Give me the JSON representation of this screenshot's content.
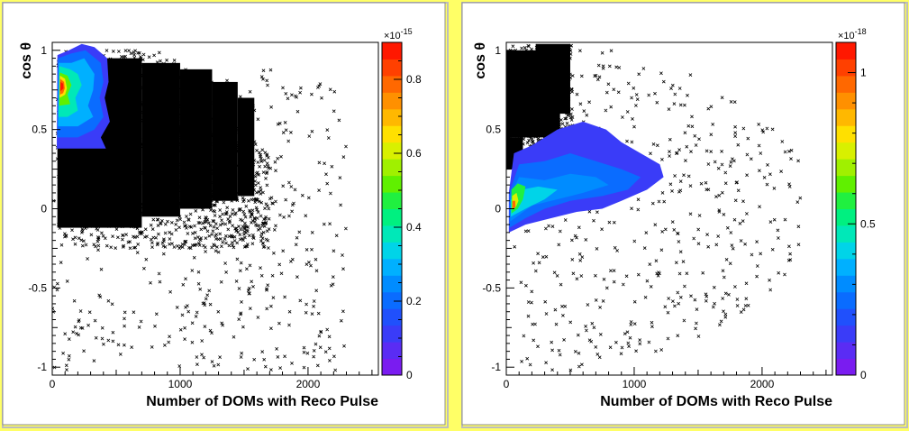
{
  "chart_data": [
    {
      "type": "scatter",
      "variant": "scatter-with-contour-overlay",
      "title": "",
      "xlabel": "Number of DOMs with Reco Pulse",
      "ylabel": "cos θ",
      "xlim": [
        0,
        2550
      ],
      "ylim": [
        -1.05,
        1.05
      ],
      "x_ticks": [
        0,
        1000,
        2000
      ],
      "y_ticks": [
        -1,
        -0.5,
        0,
        0.5,
        1
      ],
      "x_tick_labels": [
        "0",
        "1000",
        "2000"
      ],
      "y_tick_labels": [
        "-1",
        "-0.5",
        "0",
        "0.5",
        "1"
      ],
      "grid": false,
      "legend": "none",
      "colorbar": {
        "multiplier_label": "×10",
        "exponent": "-15",
        "range": [
          0,
          0.9
        ],
        "ticks": [
          0,
          0.2,
          0.4,
          0.6,
          0.8
        ],
        "tick_labels": [
          "0",
          "0.2",
          "0.4",
          "0.6",
          "0.8"
        ]
      },
      "scatter_density": {
        "dense_core": {
          "x": [
            40,
            1550
          ],
          "y": [
            -0.1,
            0.95
          ]
        },
        "sparse_tail": {
          "x": [
            0,
            2400
          ],
          "y": [
            -1.02,
            0.9
          ]
        }
      },
      "contour": {
        "x_range": [
          30,
          460
        ],
        "y_range": [
          0.37,
          1.03
        ],
        "peak": {
          "x": 80,
          "y": 0.78
        }
      }
    },
    {
      "type": "scatter",
      "variant": "scatter-with-contour-overlay",
      "title": "",
      "xlabel": "Number of DOMs with Reco Pulse",
      "ylabel": "cos θ",
      "xlim": [
        0,
        2550
      ],
      "ylim": [
        -1.05,
        1.05
      ],
      "x_ticks": [
        0,
        1000,
        2000
      ],
      "y_ticks": [
        -1,
        -0.5,
        0,
        0.5,
        1
      ],
      "x_tick_labels": [
        "0",
        "1000",
        "2000"
      ],
      "y_tick_labels": [
        "-1",
        "-0.5",
        "0",
        "0.5",
        "1"
      ],
      "grid": false,
      "legend": "none",
      "colorbar": {
        "multiplier_label": "×10",
        "exponent": "-18",
        "range": [
          0,
          1.1
        ],
        "ticks": [
          0,
          0.5,
          1
        ],
        "tick_labels": [
          "0",
          "0.5",
          "1"
        ]
      },
      "scatter_density": {
        "dense_core": {
          "x": [
            0,
            500
          ],
          "y": [
            0.45,
            1.0
          ]
        },
        "sparse_tail": {
          "x": [
            50,
            2300
          ],
          "y": [
            -1.03,
            1.0
          ]
        }
      },
      "contour": {
        "x_range": [
          20,
          1230
        ],
        "y_range": [
          -0.15,
          0.55
        ],
        "peak": {
          "x": 60,
          "y": 0.02
        }
      }
    }
  ]
}
